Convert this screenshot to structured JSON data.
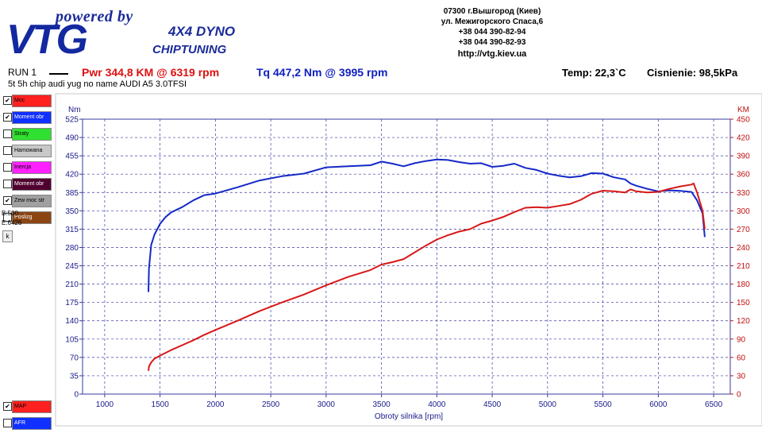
{
  "header": {
    "logo_powered": "powered by",
    "logo_brand": "VTG",
    "logo_line1": "4X4 DYNO",
    "logo_line2": "CHIPTUNING",
    "address1": "07300 г.Вышгород (Киев)",
    "address2": "ул. Межигорского Спаса,6",
    "phone1": "+38 044 390-82-94",
    "phone2": "+38 044 390-82-93",
    "url": "http://vtg.kiev.ua"
  },
  "run": {
    "label": "RUN 1",
    "power": "Pwr  344,8 KM @ 6319 rpm",
    "torque": "Tq 447,2 Nm @ 3995 rpm",
    "temp": "Temp: 22,3`C",
    "pressure": "Cisnienie: 98,5kPa",
    "description": "5t 5h chip audi yug no name AUDI A5 3.0TFSI"
  },
  "legend": [
    {
      "label": "Moc",
      "checked": true,
      "color": "#ff2020"
    },
    {
      "label": "Moment obr",
      "checked": true,
      "color": "#1030ff"
    },
    {
      "label": "Straty",
      "checked": false,
      "color": "#30e030"
    },
    {
      "label": "Hamowana",
      "checked": false,
      "color": "#c8c8c8"
    },
    {
      "label": "Inercja",
      "checked": false,
      "color": "#ff20ff"
    },
    {
      "label": "Moment obr",
      "checked": false,
      "color": "#500030"
    },
    {
      "label": "Zew moc str",
      "checked": true,
      "color": "#a0a0a0"
    },
    {
      "label": "Poslizg",
      "checked": false,
      "color": "#8b4513"
    }
  ],
  "side_info": {
    "b": "B:500",
    "e": "E:6426",
    "k_button": "k"
  },
  "legend_bottom": [
    {
      "label": "MAP",
      "checked": true,
      "color": "#ff2020"
    },
    {
      "label": "AFR",
      "checked": false,
      "color": "#1030ff"
    }
  ],
  "chart_data": {
    "type": "line",
    "xlabel": "Obroty silnika [rpm]",
    "ylabel_left": "Nm",
    "ylabel_right": "KM",
    "xlim": [
      800,
      6650
    ],
    "ylim_left": [
      0,
      525
    ],
    "ylim_right": [
      0,
      450
    ],
    "x_ticks": [
      1000,
      1500,
      2000,
      2500,
      3000,
      3500,
      4000,
      4500,
      5000,
      5500,
      6000,
      6500
    ],
    "y_left_ticks": [
      0,
      35,
      70,
      105,
      140,
      175,
      210,
      245,
      280,
      315,
      350,
      385,
      420,
      455,
      490,
      525
    ],
    "y_right_ticks": [
      0,
      30,
      60,
      90,
      120,
      150,
      180,
      210,
      240,
      270,
      300,
      330,
      360,
      390,
      420,
      450
    ],
    "grid": true,
    "series": [
      {
        "name": "Moment obr",
        "axis": "left",
        "color": "#1428c8",
        "x": [
          1395,
          1400,
          1420,
          1450,
          1500,
          1550,
          1600,
          1700,
          1800,
          1900,
          2000,
          2200,
          2400,
          2600,
          2800,
          3000,
          3200,
          3400,
          3500,
          3600,
          3700,
          3800,
          3900,
          4000,
          4100,
          4200,
          4300,
          4400,
          4500,
          4600,
          4700,
          4800,
          4900,
          5000,
          5100,
          5200,
          5300,
          5400,
          5500,
          5600,
          5700,
          5750,
          5800,
          5900,
          6000,
          6100,
          6200,
          6300,
          6350,
          6400,
          6420
        ],
        "y": [
          195,
          240,
          285,
          305,
          325,
          338,
          347,
          357,
          370,
          380,
          383,
          395,
          408,
          416,
          421,
          433,
          435,
          437,
          444,
          440,
          435,
          441,
          445,
          448,
          447,
          443,
          440,
          441,
          434,
          436,
          440,
          432,
          428,
          421,
          417,
          414,
          416,
          422,
          421,
          414,
          410,
          402,
          398,
          392,
          387,
          389,
          388,
          386,
          370,
          345,
          300
        ]
      },
      {
        "name": "Moc",
        "axis": "right",
        "color": "#d81818",
        "x": [
          1395,
          1400,
          1420,
          1450,
          1500,
          1600,
          1700,
          1800,
          1900,
          2000,
          2200,
          2400,
          2600,
          2800,
          3000,
          3200,
          3400,
          3500,
          3600,
          3700,
          3800,
          3900,
          4000,
          4100,
          4200,
          4300,
          4400,
          4500,
          4600,
          4700,
          4800,
          4900,
          5000,
          5100,
          5200,
          5300,
          5400,
          5500,
          5600,
          5700,
          5750,
          5800,
          5900,
          6000,
          6100,
          6200,
          6300,
          6319,
          6350,
          6400,
          6420
        ],
        "y": [
          38,
          45,
          52,
          58,
          63,
          72,
          80,
          88,
          97,
          105,
          120,
          136,
          150,
          163,
          178,
          192,
          203,
          212,
          216,
          221,
          232,
          243,
          253,
          260,
          266,
          270,
          279,
          284,
          290,
          298,
          305,
          306,
          305,
          308,
          311,
          318,
          328,
          333,
          332,
          330,
          335,
          332,
          330,
          331,
          336,
          340,
          343,
          344.8,
          330,
          300,
          270
        ]
      }
    ]
  }
}
